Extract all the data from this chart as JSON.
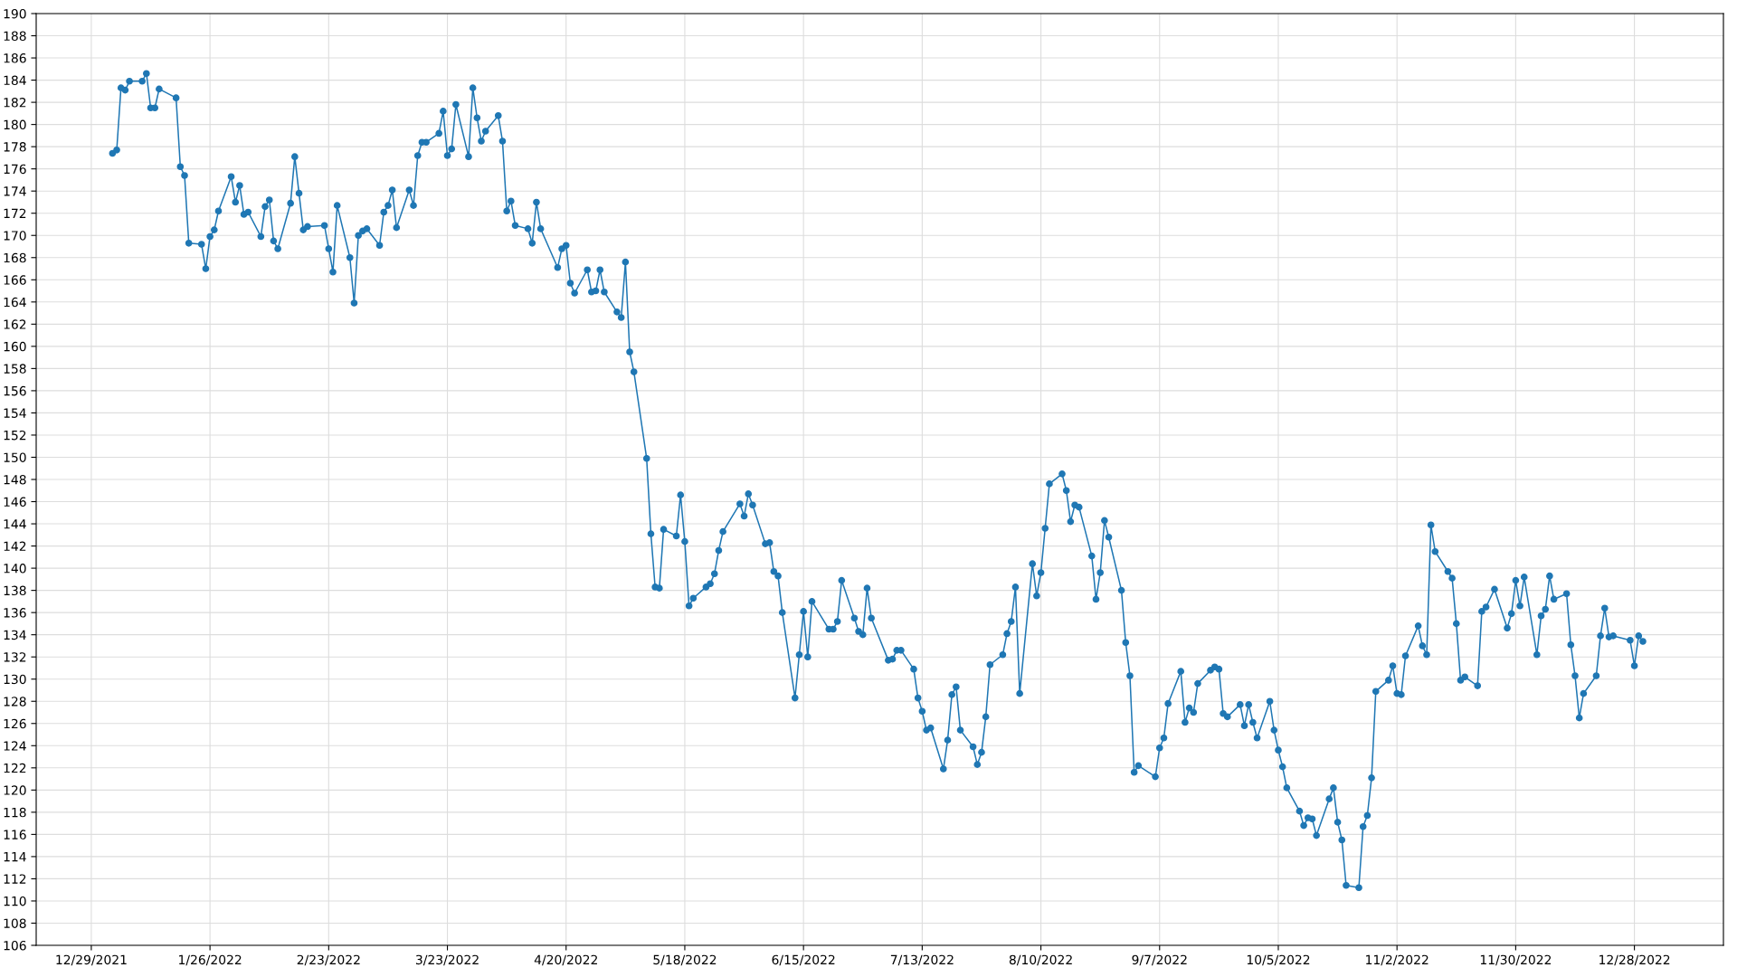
{
  "chart_data": {
    "type": "line",
    "marker": "circle",
    "line_style": "solid",
    "grid": true,
    "xlim": [
      "2021-12-16",
      "2023-01-18"
    ],
    "xticks": [
      {
        "value": "2021-12-29",
        "label": "12/29/2021"
      },
      {
        "value": "2022-01-26",
        "label": "1/26/2022"
      },
      {
        "value": "2022-02-23",
        "label": "2/23/2022"
      },
      {
        "value": "2022-03-23",
        "label": "3/23/2022"
      },
      {
        "value": "2022-04-20",
        "label": "4/20/2022"
      },
      {
        "value": "2022-05-18",
        "label": "5/18/2022"
      },
      {
        "value": "2022-06-15",
        "label": "6/15/2022"
      },
      {
        "value": "2022-07-13",
        "label": "7/13/2022"
      },
      {
        "value": "2022-08-10",
        "label": "8/10/2022"
      },
      {
        "value": "2022-09-07",
        "label": "9/7/2022"
      },
      {
        "value": "2022-10-05",
        "label": "10/5/2022"
      },
      {
        "value": "2022-11-02",
        "label": "11/2/2022"
      },
      {
        "value": "2022-11-30",
        "label": "11/30/2022"
      },
      {
        "value": "2022-12-28",
        "label": "12/28/2022"
      }
    ],
    "ylim": [
      106,
      190
    ],
    "yticks": [
      106,
      108,
      110,
      112,
      114,
      116,
      118,
      120,
      122,
      124,
      126,
      128,
      130,
      132,
      134,
      136,
      138,
      140,
      142,
      144,
      146,
      148,
      150,
      152,
      154,
      156,
      158,
      160,
      162,
      164,
      166,
      168,
      170,
      172,
      174,
      176,
      178,
      180,
      182,
      184,
      186,
      188,
      190
    ],
    "x": [
      "2022-01-03",
      "2022-01-04",
      "2022-01-05",
      "2022-01-06",
      "2022-01-07",
      "2022-01-10",
      "2022-01-11",
      "2022-01-12",
      "2022-01-13",
      "2022-01-14",
      "2022-01-18",
      "2022-01-19",
      "2022-01-20",
      "2022-01-21",
      "2022-01-24",
      "2022-01-25",
      "2022-01-26",
      "2022-01-27",
      "2022-01-28",
      "2022-01-31",
      "2022-02-01",
      "2022-02-02",
      "2022-02-03",
      "2022-02-04",
      "2022-02-07",
      "2022-02-08",
      "2022-02-09",
      "2022-02-10",
      "2022-02-11",
      "2022-02-14",
      "2022-02-15",
      "2022-02-16",
      "2022-02-17",
      "2022-02-18",
      "2022-02-22",
      "2022-02-23",
      "2022-02-24",
      "2022-02-25",
      "2022-02-28",
      "2022-03-01",
      "2022-03-02",
      "2022-03-03",
      "2022-03-04",
      "2022-03-07",
      "2022-03-08",
      "2022-03-09",
      "2022-03-10",
      "2022-03-11",
      "2022-03-14",
      "2022-03-15",
      "2022-03-16",
      "2022-03-17",
      "2022-03-18",
      "2022-03-21",
      "2022-03-22",
      "2022-03-23",
      "2022-03-24",
      "2022-03-25",
      "2022-03-28",
      "2022-03-29",
      "2022-03-30",
      "2022-03-31",
      "2022-04-01",
      "2022-04-04",
      "2022-04-05",
      "2022-04-06",
      "2022-04-07",
      "2022-04-08",
      "2022-04-11",
      "2022-04-12",
      "2022-04-13",
      "2022-04-14",
      "2022-04-18",
      "2022-04-19",
      "2022-04-20",
      "2022-04-21",
      "2022-04-22",
      "2022-04-25",
      "2022-04-26",
      "2022-04-27",
      "2022-04-28",
      "2022-04-29",
      "2022-05-02",
      "2022-05-03",
      "2022-05-04",
      "2022-05-05",
      "2022-05-06",
      "2022-05-09",
      "2022-05-10",
      "2022-05-11",
      "2022-05-12",
      "2022-05-13",
      "2022-05-16",
      "2022-05-17",
      "2022-05-18",
      "2022-05-19",
      "2022-05-20",
      "2022-05-23",
      "2022-05-24",
      "2022-05-25",
      "2022-05-26",
      "2022-05-27",
      "2022-05-31",
      "2022-06-01",
      "2022-06-02",
      "2022-06-03",
      "2022-06-06",
      "2022-06-07",
      "2022-06-08",
      "2022-06-09",
      "2022-06-10",
      "2022-06-13",
      "2022-06-14",
      "2022-06-15",
      "2022-06-16",
      "2022-06-17",
      "2022-06-21",
      "2022-06-22",
      "2022-06-23",
      "2022-06-24",
      "2022-06-27",
      "2022-06-28",
      "2022-06-29",
      "2022-06-30",
      "2022-07-01",
      "2022-07-05",
      "2022-07-06",
      "2022-07-07",
      "2022-07-08",
      "2022-07-11",
      "2022-07-12",
      "2022-07-13",
      "2022-07-14",
      "2022-07-15",
      "2022-07-18",
      "2022-07-19",
      "2022-07-20",
      "2022-07-21",
      "2022-07-22",
      "2022-07-25",
      "2022-07-26",
      "2022-07-27",
      "2022-07-28",
      "2022-07-29",
      "2022-08-01",
      "2022-08-02",
      "2022-08-03",
      "2022-08-04",
      "2022-08-05",
      "2022-08-08",
      "2022-08-09",
      "2022-08-10",
      "2022-08-11",
      "2022-08-12",
      "2022-08-15",
      "2022-08-16",
      "2022-08-17",
      "2022-08-18",
      "2022-08-19",
      "2022-08-22",
      "2022-08-23",
      "2022-08-24",
      "2022-08-25",
      "2022-08-26",
      "2022-08-29",
      "2022-08-30",
      "2022-08-31",
      "2022-09-01",
      "2022-09-02",
      "2022-09-06",
      "2022-09-07",
      "2022-09-08",
      "2022-09-09",
      "2022-09-12",
      "2022-09-13",
      "2022-09-14",
      "2022-09-15",
      "2022-09-16",
      "2022-09-19",
      "2022-09-20",
      "2022-09-21",
      "2022-09-22",
      "2022-09-23",
      "2022-09-26",
      "2022-09-27",
      "2022-09-28",
      "2022-09-29",
      "2022-09-30",
      "2022-10-03",
      "2022-10-04",
      "2022-10-05",
      "2022-10-06",
      "2022-10-07",
      "2022-10-10",
      "2022-10-11",
      "2022-10-12",
      "2022-10-13",
      "2022-10-14",
      "2022-10-17",
      "2022-10-18",
      "2022-10-19",
      "2022-10-20",
      "2022-10-21",
      "2022-10-24",
      "2022-10-25",
      "2022-10-26",
      "2022-10-27",
      "2022-10-28",
      "2022-10-31",
      "2022-11-01",
      "2022-11-02",
      "2022-11-03",
      "2022-11-04",
      "2022-11-07",
      "2022-11-08",
      "2022-11-09",
      "2022-11-10",
      "2022-11-11",
      "2022-11-14",
      "2022-11-15",
      "2022-11-16",
      "2022-11-17",
      "2022-11-18",
      "2022-11-21",
      "2022-11-22",
      "2022-11-23",
      "2022-11-25",
      "2022-11-28",
      "2022-11-29",
      "2022-11-30",
      "2022-12-01",
      "2022-12-02",
      "2022-12-05",
      "2022-12-06",
      "2022-12-07",
      "2022-12-08",
      "2022-12-09",
      "2022-12-12",
      "2022-12-13",
      "2022-12-14",
      "2022-12-15",
      "2022-12-16",
      "2022-12-19",
      "2022-12-20",
      "2022-12-21",
      "2022-12-22",
      "2022-12-23",
      "2022-12-27",
      "2022-12-28",
      "2022-12-29",
      "2022-12-30"
    ],
    "series": [
      {
        "color": "#1f77b4",
        "values": [
          177.4,
          177.7,
          183.3,
          183.1,
          183.9,
          183.9,
          184.6,
          181.5,
          181.5,
          183.2,
          182.4,
          176.2,
          175.4,
          169.3,
          169.2,
          167.0,
          169.9,
          170.5,
          172.2,
          175.3,
          173.0,
          174.5,
          171.9,
          172.1,
          169.9,
          172.6,
          173.2,
          169.5,
          168.8,
          172.9,
          177.1,
          173.8,
          170.5,
          170.8,
          170.9,
          168.8,
          166.7,
          172.7,
          168.0,
          163.9,
          170.0,
          170.4,
          170.6,
          169.1,
          172.1,
          172.7,
          174.1,
          170.7,
          174.1,
          172.7,
          177.2,
          178.4,
          178.4,
          179.2,
          181.2,
          177.2,
          177.8,
          181.8,
          177.1,
          183.3,
          180.6,
          178.5,
          179.4,
          180.8,
          178.5,
          172.2,
          173.1,
          170.9,
          170.6,
          169.3,
          173.0,
          170.6,
          167.1,
          168.8,
          169.1,
          165.7,
          164.8,
          166.9,
          164.9,
          165.0,
          166.9,
          164.9,
          163.1,
          162.6,
          167.6,
          159.5,
          157.7,
          149.9,
          143.1,
          138.3,
          138.2,
          143.5,
          142.9,
          146.6,
          142.4,
          136.6,
          137.3,
          138.3,
          138.6,
          139.5,
          141.6,
          143.3,
          145.8,
          144.7,
          146.7,
          145.7,
          142.2,
          142.3,
          139.7,
          139.3,
          136.0,
          128.3,
          132.2,
          136.1,
          132.0,
          137.0,
          134.5,
          134.5,
          135.2,
          138.9,
          135.5,
          134.3,
          134.0,
          138.2,
          135.5,
          131.7,
          131.8,
          132.6,
          132.6,
          130.9,
          128.3,
          127.1,
          125.4,
          125.6,
          121.9,
          124.5,
          128.6,
          129.3,
          125.4,
          123.9,
          122.3,
          123.4,
          126.6,
          131.3,
          132.2,
          134.1,
          135.2,
          138.3,
          128.7,
          140.4,
          137.5,
          139.6,
          143.6,
          147.6,
          148.5,
          147.0,
          144.2,
          145.7,
          145.5,
          141.1,
          137.2,
          139.6,
          144.3,
          142.8,
          138.0,
          133.3,
          130.3,
          121.6,
          122.2,
          121.2,
          123.8,
          124.7,
          127.8,
          130.7,
          126.1,
          127.4,
          127.0,
          129.6,
          130.8,
          131.1,
          130.9,
          126.9,
          126.6,
          127.7,
          125.8,
          127.7,
          126.1,
          124.7,
          128.0,
          125.4,
          123.6,
          122.1,
          120.2,
          118.1,
          116.8,
          117.5,
          117.4,
          115.9,
          119.2,
          120.2,
          117.1,
          115.5,
          111.4,
          111.2,
          116.7,
          117.7,
          121.1,
          128.9,
          129.9,
          131.2,
          128.7,
          128.6,
          132.1,
          134.8,
          133.0,
          132.2,
          143.9,
          141.5,
          139.7,
          139.1,
          135.0,
          129.9,
          130.2,
          129.4,
          136.1,
          136.5,
          138.1,
          134.6,
          135.9,
          138.9,
          136.6,
          139.2,
          132.2,
          135.7,
          136.3,
          139.3,
          137.2,
          137.7,
          133.1,
          130.3,
          126.5,
          128.7,
          130.3,
          133.9,
          136.4,
          133.8,
          133.9,
          133.5,
          131.2,
          133.9,
          133.4
        ]
      }
    ]
  }
}
